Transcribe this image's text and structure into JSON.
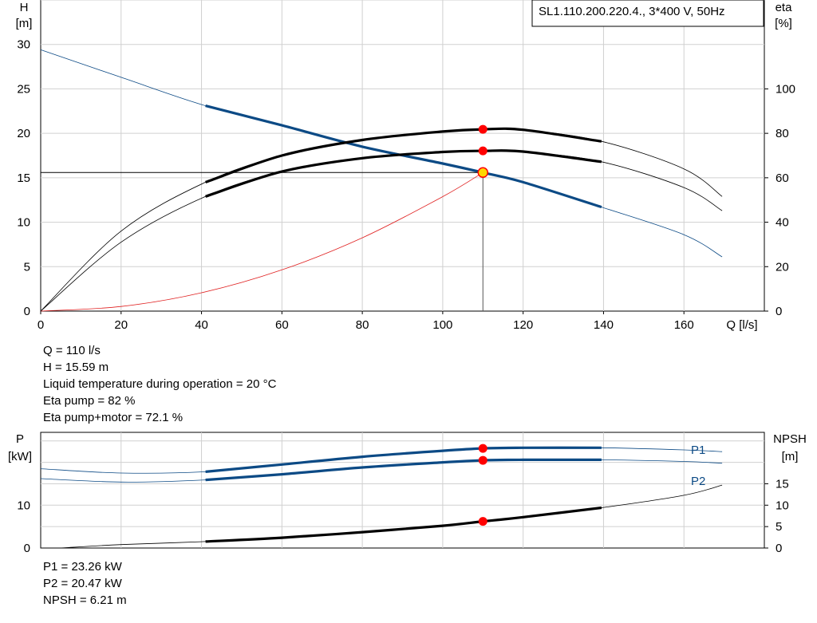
{
  "title": "SL1.110.200.220.4., 3*400 V, 50Hz",
  "chart_data": [
    {
      "type": "line",
      "name": "head-efficiency",
      "x_label": "Q [l/s]",
      "y_left_label": [
        "H",
        "[m]"
      ],
      "y_right_label": [
        "eta",
        "[%]"
      ],
      "x_range": [
        0,
        180
      ],
      "y_left_range": [
        0,
        35
      ],
      "y_right_range": [
        0,
        140
      ],
      "x_ticks": [
        0,
        20,
        40,
        60,
        80,
        100,
        120,
        140,
        160
      ],
      "y_left_ticks": [
        0,
        5,
        10,
        15,
        20,
        25,
        30
      ],
      "y_right_ticks": [
        0,
        20,
        40,
        60,
        80,
        100
      ],
      "grid": true,
      "series": [
        {
          "id": "H",
          "axis": "left",
          "color": "#0c4a85",
          "x": [
            0,
            20,
            41,
            60,
            80,
            100,
            110,
            120,
            139.5,
            160,
            169.5
          ],
          "y": [
            29.4,
            26.3,
            23.1,
            20.9,
            18.5,
            16.6,
            15.59,
            14.5,
            11.7,
            8.6,
            6.1
          ],
          "bold_from": 41,
          "bold_to": 139.5
        },
        {
          "id": "eta_pump",
          "axis": "right",
          "color": "#000000",
          "x": [
            0,
            20,
            41,
            60,
            80,
            100,
            110,
            120,
            139.5,
            160,
            169.5
          ],
          "y": [
            0,
            36,
            58,
            70,
            77,
            80.8,
            81.8,
            81.6,
            76.4,
            64,
            51.6
          ],
          "bold_from": 41,
          "bold_to": 139.5
        },
        {
          "id": "eta_pump_motor",
          "axis": "right",
          "color": "#000000",
          "x": [
            0,
            20,
            41,
            60,
            80,
            100,
            110,
            120,
            139.5,
            160,
            169.5
          ],
          "y": [
            0,
            31,
            51.6,
            62.8,
            68.8,
            71.6,
            72.1,
            71.8,
            67.2,
            55.6,
            45.2
          ],
          "bold_from": 41,
          "bold_to": 139.5
        },
        {
          "id": "system",
          "axis": "left",
          "color": "#e02020",
          "x": [
            0,
            20,
            40,
            60,
            80,
            100,
            110
          ],
          "y": [
            0,
            0.52,
            2.06,
            4.64,
            8.25,
            12.88,
            15.59
          ]
        }
      ],
      "duty_point": {
        "x": 110,
        "y": 15.59
      },
      "markers": [
        {
          "x": 110,
          "y": 81.8,
          "axis": "right"
        },
        {
          "x": 110,
          "y": 72.1,
          "axis": "right"
        }
      ]
    },
    {
      "type": "line",
      "name": "power-npsh",
      "y_left_label": [
        "P",
        "[kW]"
      ],
      "y_right_label": [
        "NPSH",
        "[m]"
      ],
      "x_range": [
        0,
        180
      ],
      "y_left_range": [
        0,
        27
      ],
      "y_right_range": [
        0,
        27
      ],
      "y_left_ticks": [
        0,
        10
      ],
      "y_right_ticks": [
        0,
        5,
        10,
        15
      ],
      "grid": true,
      "series": [
        {
          "id": "P1",
          "name": "P1",
          "axis": "left",
          "color": "#0c4a85",
          "x": [
            0,
            20,
            41,
            60,
            80,
            100,
            110,
            120,
            139.5,
            160,
            169.5
          ],
          "y": [
            18.5,
            17.5,
            17.8,
            19.5,
            21.3,
            22.7,
            23.26,
            23.4,
            23.4,
            22.9,
            22.5
          ],
          "bold_from": 41,
          "bold_to": 139.5
        },
        {
          "id": "P2",
          "name": "P2",
          "axis": "left",
          "color": "#0c4a85",
          "x": [
            0,
            20,
            41,
            60,
            80,
            100,
            110,
            120,
            139.5,
            160,
            169.5
          ],
          "y": [
            16.2,
            15.4,
            15.9,
            17.2,
            18.8,
            20.0,
            20.47,
            20.6,
            20.6,
            20.2,
            19.8
          ],
          "bold_from": 41,
          "bold_to": 139.5
        },
        {
          "id": "NPSH",
          "axis": "right",
          "color": "#000000",
          "x": [
            5,
            20,
            41,
            60,
            80,
            100,
            110,
            120,
            139.5,
            160,
            169.5
          ],
          "y": [
            0,
            0.8,
            1.5,
            2.4,
            3.7,
            5.2,
            6.21,
            7.2,
            9.4,
            12.3,
            14.7
          ],
          "bold_from": 41,
          "bold_to": 139.5
        }
      ],
      "markers": [
        {
          "x": 110,
          "y": 23.26,
          "axis": "left"
        },
        {
          "x": 110,
          "y": 20.47,
          "axis": "left"
        },
        {
          "x": 110,
          "y": 6.21,
          "axis": "right"
        }
      ]
    }
  ],
  "info_top": [
    "Q = 110 l/s",
    "H = 15.59 m",
    "Liquid temperature during operation = 20 °C",
    "Eta pump = 82 %",
    "Eta pump+motor = 72.1 %"
  ],
  "info_bottom": [
    "P1 = 23.26 kW",
    "P2 = 20.47 kW",
    "NPSH = 6.21 m"
  ]
}
